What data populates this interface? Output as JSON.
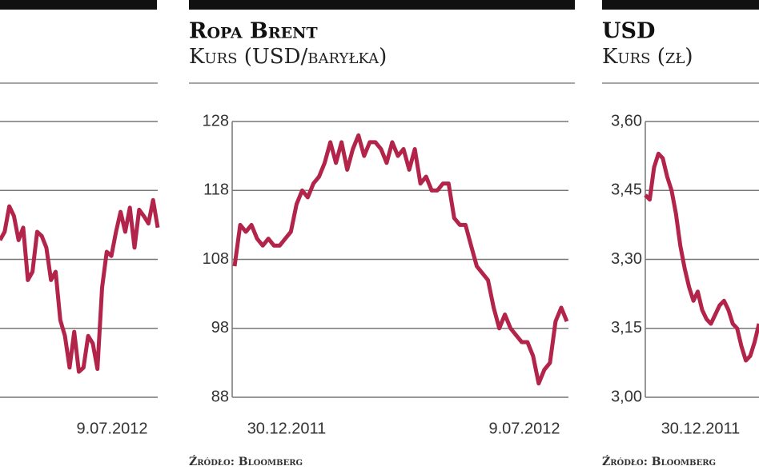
{
  "chart_data": [
    {
      "type": "line",
      "color": "#b3244b",
      "tick_labels": false,
      "x_labels": [
        "9.07.2012"
      ],
      "ylim": [
        0,
        4
      ],
      "yticks": [
        0,
        1,
        2,
        3,
        4
      ],
      "grid": true,
      "values": [
        2.28,
        2.4,
        2.77,
        2.63,
        2.28,
        2.46,
        1.7,
        1.82,
        2.4,
        2.34,
        2.17,
        1.7,
        1.82,
        1.12,
        0.89,
        0.43,
        0.95,
        0.37,
        0.43,
        0.89,
        0.78,
        0.41,
        1.59,
        2.11,
        2.05,
        2.4,
        2.69,
        2.4,
        2.75,
        2.17,
        2.72,
        2.63,
        2.52,
        2.86,
        2.46
      ]
    },
    {
      "type": "line",
      "color": "#b3244b",
      "title": "Ropa Brent",
      "subtitle": "Kurs (USD/baryłka)",
      "source": "Źródło: Bloomberg",
      "x_labels": [
        "30.12.2011",
        "9.07.2012"
      ],
      "ylim": [
        88,
        128
      ],
      "yticks": [
        88,
        98,
        108,
        118,
        128
      ],
      "grid": true,
      "values": [
        107,
        113,
        112,
        113,
        111,
        110,
        111,
        110,
        110,
        111,
        112,
        116,
        118,
        117,
        119,
        120,
        122,
        125,
        122,
        125,
        121,
        124,
        126,
        123,
        125,
        125,
        124,
        122,
        125,
        123,
        124,
        121,
        124,
        119,
        120,
        118,
        118,
        119,
        119,
        114,
        113,
        113,
        110,
        107,
        106,
        105,
        101,
        98,
        100,
        98,
        97,
        96,
        96,
        94,
        90,
        92,
        93,
        99,
        101,
        99
      ]
    },
    {
      "type": "line",
      "color": "#b3244b",
      "title": "USD",
      "subtitle": "Kurs (zł)",
      "source": "Źródło: Bloomberg",
      "x_labels": [
        "30.12.2011"
      ],
      "ylim": [
        3.0,
        3.6
      ],
      "yticks": [
        {
          "value": 3.0,
          "label": "3,00"
        },
        {
          "value": 3.15,
          "label": "3,15"
        },
        {
          "value": 3.3,
          "label": "3,30"
        },
        {
          "value": 3.45,
          "label": "3,45"
        },
        {
          "value": 3.6,
          "label": "3,60"
        }
      ],
      "grid": true,
      "values": [
        3.44,
        3.43,
        3.5,
        3.53,
        3.52,
        3.48,
        3.45,
        3.4,
        3.33,
        3.28,
        3.24,
        3.21,
        3.23,
        3.19,
        3.17,
        3.16,
        3.18,
        3.2,
        3.21,
        3.19,
        3.16,
        3.15,
        3.11,
        3.08,
        3.09,
        3.12,
        3.16
      ]
    }
  ]
}
